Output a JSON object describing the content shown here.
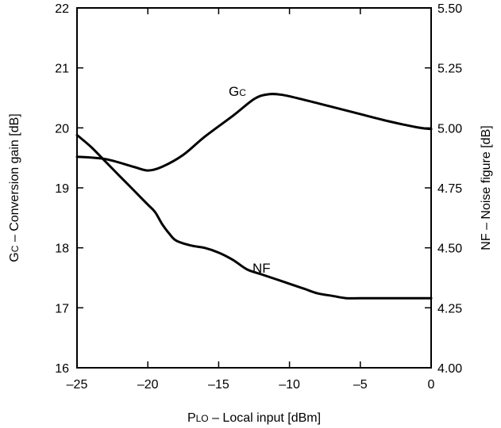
{
  "chart_data": {
    "type": "line",
    "x_axis": {
      "label_main": "P",
      "label_sub": "LO",
      "label_rest": " – Local input [dBm]",
      "min": -25,
      "max": 0,
      "ticks": [
        -25,
        -20,
        -15,
        -10,
        -5,
        0
      ],
      "tick_labels": [
        "–25",
        "–20",
        "–15",
        "–10",
        "–5",
        "0"
      ]
    },
    "y_left": {
      "label_main": "G",
      "label_sub": "C",
      "label_rest": " – Conversion gain [dB]",
      "min": 16,
      "max": 22,
      "ticks": [
        16,
        17,
        18,
        19,
        20,
        21,
        22
      ],
      "tick_labels": [
        "16",
        "17",
        "18",
        "19",
        "20",
        "21",
        "22"
      ]
    },
    "y_right": {
      "label": "NF – Noise figure [dB]",
      "min": 4.0,
      "max": 5.5,
      "ticks": [
        4.0,
        4.25,
        4.5,
        4.75,
        5.0,
        5.25,
        5.5
      ],
      "tick_labels": [
        "4.00",
        "4.25",
        "4.50",
        "4.75",
        "5.00",
        "5.25",
        "5.50"
      ]
    },
    "grid": false,
    "series": [
      {
        "name_main": "G",
        "name_sub": "C",
        "axis": "left",
        "x": [
          -25,
          -23,
          -21,
          -20,
          -19,
          -17.5,
          -16,
          -14,
          -12.5,
          -11.5,
          -10.5,
          -9,
          -7,
          -5,
          -3,
          -1,
          0
        ],
        "y": [
          19.52,
          19.48,
          19.35,
          19.29,
          19.35,
          19.55,
          19.85,
          20.2,
          20.48,
          20.56,
          20.55,
          20.47,
          20.35,
          20.23,
          20.11,
          20.01,
          19.98
        ]
      },
      {
        "name": "NF",
        "axis": "right",
        "x": [
          -25,
          -24,
          -23,
          -22,
          -21,
          -20,
          -19.5,
          -19,
          -18.5,
          -18,
          -17,
          -16,
          -15,
          -14,
          -13,
          -12,
          -11,
          -10,
          -9,
          -8,
          -7,
          -6,
          -5,
          -3,
          -1,
          0
        ],
        "y": [
          4.97,
          4.92,
          4.86,
          4.8,
          4.74,
          4.68,
          4.65,
          4.6,
          4.56,
          4.53,
          4.51,
          4.5,
          4.48,
          4.45,
          4.41,
          4.39,
          4.37,
          4.35,
          4.33,
          4.31,
          4.3,
          4.29,
          4.29,
          4.29,
          4.29,
          4.29
        ]
      }
    ]
  }
}
